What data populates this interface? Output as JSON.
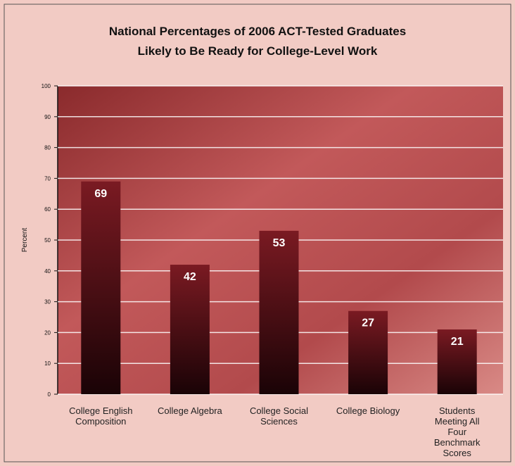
{
  "chart_data": {
    "type": "bar",
    "title": "National Percentages of 2006 ACT-Tested Graduates",
    "subtitle": "Likely to Be Ready for College-Level Work",
    "y_label": "Percent",
    "categories": [
      "College English Composition",
      "College Algebra",
      "College Social Sciences",
      "College Biology",
      "Students Meeting All Four Benchmark Scores"
    ],
    "values": [
      69,
      42,
      53,
      27,
      21
    ],
    "color": "#3a0a10",
    "ylim": [
      0,
      100
    ],
    "yticks": [
      0,
      10,
      20,
      30,
      40,
      50,
      60,
      70,
      80,
      90,
      100
    ],
    "grid": true
  }
}
